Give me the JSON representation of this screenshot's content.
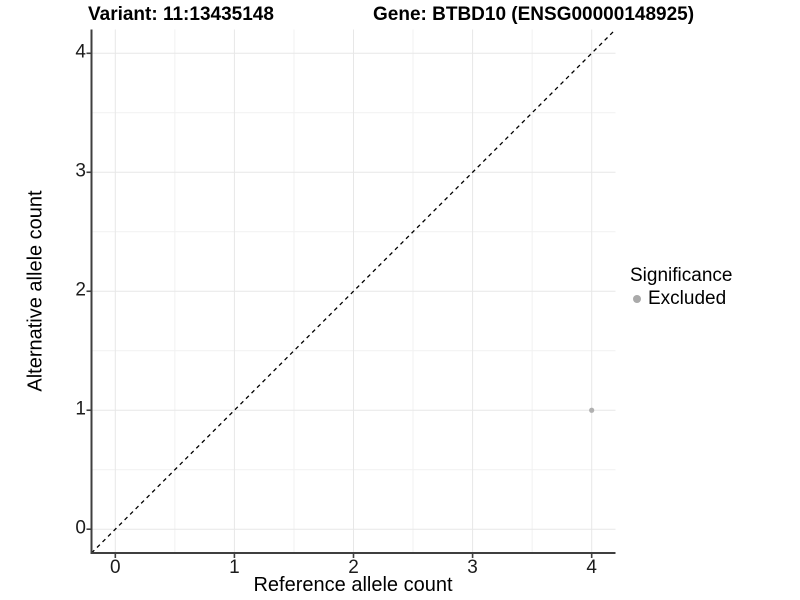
{
  "titles": {
    "variant": "Variant: 11:13435148",
    "gene": "Gene: BTBD10 (ENSG00000148925)"
  },
  "chart_data": {
    "type": "scatter",
    "title_left": "Variant: 11:13435148",
    "title_right": "Gene: BTBD10 (ENSG00000148925)",
    "xlabel": "Reference allele count",
    "ylabel": "Alternative allele count",
    "xlim": [
      -0.2,
      4.2
    ],
    "ylim": [
      -0.2,
      4.2
    ],
    "xticks": [
      0,
      1,
      2,
      3,
      4
    ],
    "yticks": [
      0,
      1,
      2,
      3,
      4
    ],
    "x_minor_ticks": [
      0.5,
      1.5,
      2.5,
      3.5
    ],
    "y_minor_ticks": [
      0.5,
      1.5,
      2.5,
      3.5
    ],
    "grid": true,
    "identity_line": {
      "style": "dashed",
      "x1": -0.2,
      "y1": -0.2,
      "x2": 4.2,
      "y2": 4.2,
      "color": "#000000"
    },
    "series": [
      {
        "name": "Excluded",
        "color": "#b0b0b0",
        "points": [
          {
            "x": 4,
            "y": 1
          }
        ]
      }
    ],
    "legend": {
      "title": "Significance",
      "position": "right",
      "items": [
        {
          "label": "Excluded",
          "color": "#aaaaaa"
        }
      ]
    },
    "colors": {
      "background": "#ffffff",
      "grid_major": "#e7e7e7",
      "grid_minor": "#f1f1f1",
      "axis_line": "#3f3f3f",
      "tick_text": "#1c1c1c",
      "point": "#b0b0b0"
    }
  }
}
